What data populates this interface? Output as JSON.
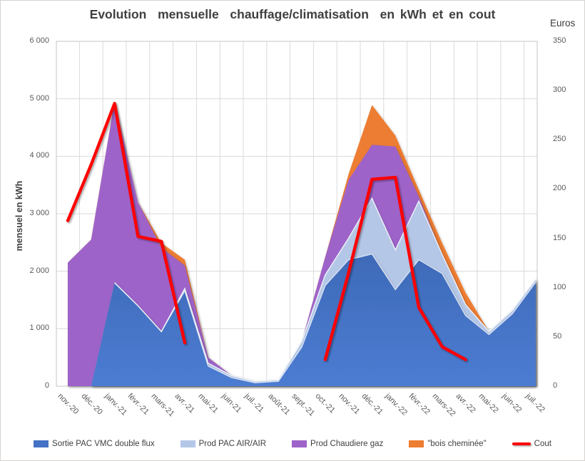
{
  "title": "Evolution  mensuelle  chauffage/climatisation  en kWh et en cout",
  "left_axis_title": "mensuel en kWh",
  "right_axis_title": "Euros",
  "colors": {
    "grid": "#dadada",
    "plot_border": "#c6c6c6",
    "blue_edge": "#d9e2f2",
    "lightblue_edge": "#eef3fa",
    "title_text": "#3f3f3f",
    "tick_text": "#595959"
  },
  "chart_data": {
    "type": "area",
    "stacked": true,
    "grid": true,
    "legend_position": "bottom",
    "categories": [
      "nov.-20",
      "déc.-20",
      "janv.-21",
      "févr.-21",
      "mars-21",
      "avr.-21",
      "mai-21",
      "juin-21",
      "juil.-21",
      "août-21",
      "sept.-21",
      "oct.-21",
      "nov.-21",
      "déc.-21",
      "janv.-22",
      "févr.-22",
      "mars-22",
      "avr.-22",
      "mai-22",
      "juin-22",
      "juil.-22"
    ],
    "left_axis": {
      "min": 0,
      "max": 6000,
      "step": 1000,
      "tick_labels": [
        "0",
        "1 000",
        "2 000",
        "3 000",
        "4 000",
        "5 000",
        "6 000"
      ]
    },
    "right_axis": {
      "min": 0,
      "max": 350,
      "step": 50,
      "tick_labels": [
        "0",
        "50",
        "100",
        "150",
        "200",
        "250",
        "300",
        "350"
      ]
    },
    "series": [
      {
        "name": "Sortie PAC VMC double flux",
        "kind": "area",
        "axis": "left",
        "color": "#4472c4",
        "values": [
          0,
          0,
          1800,
          1400,
          950,
          1660,
          350,
          150,
          60,
          85,
          680,
          1750,
          2200,
          2300,
          1680,
          2200,
          1960,
          1230,
          900,
          1260,
          1810
        ]
      },
      {
        "name": "Prod PAC AIR/AIR",
        "kind": "area",
        "axis": "left",
        "color": "#b4c7e7",
        "values": [
          0,
          0,
          0,
          0,
          0,
          40,
          50,
          35,
          25,
          25,
          100,
          185,
          375,
          970,
          690,
          1020,
          330,
          190,
          50,
          60,
          55
        ]
      },
      {
        "name": "Prod Chaudiere gaz",
        "kind": "area",
        "axis": "left",
        "color": "#9e63c9",
        "values": [
          2150,
          2550,
          3150,
          1800,
          1460,
          400,
          100,
          0,
          0,
          0,
          0,
          310,
          1015,
          930,
          1800,
          80,
          0,
          0,
          0,
          0,
          0
        ]
      },
      {
        "name": "\"bois cheminée\"",
        "kind": "area",
        "axis": "left",
        "color": "#ed7d31",
        "values": [
          0,
          0,
          0,
          0,
          80,
          100,
          0,
          0,
          0,
          0,
          0,
          0,
          100,
          690,
          190,
          120,
          200,
          205,
          0,
          0,
          0
        ]
      },
      {
        "name": "Cout",
        "kind": "line",
        "axis": "right",
        "color": "#fe0000",
        "values": [
          168,
          225,
          287,
          152,
          147,
          44,
          null,
          null,
          null,
          null,
          null,
          27,
          115,
          210,
          212,
          80,
          40,
          27,
          null,
          null,
          null
        ]
      }
    ]
  }
}
